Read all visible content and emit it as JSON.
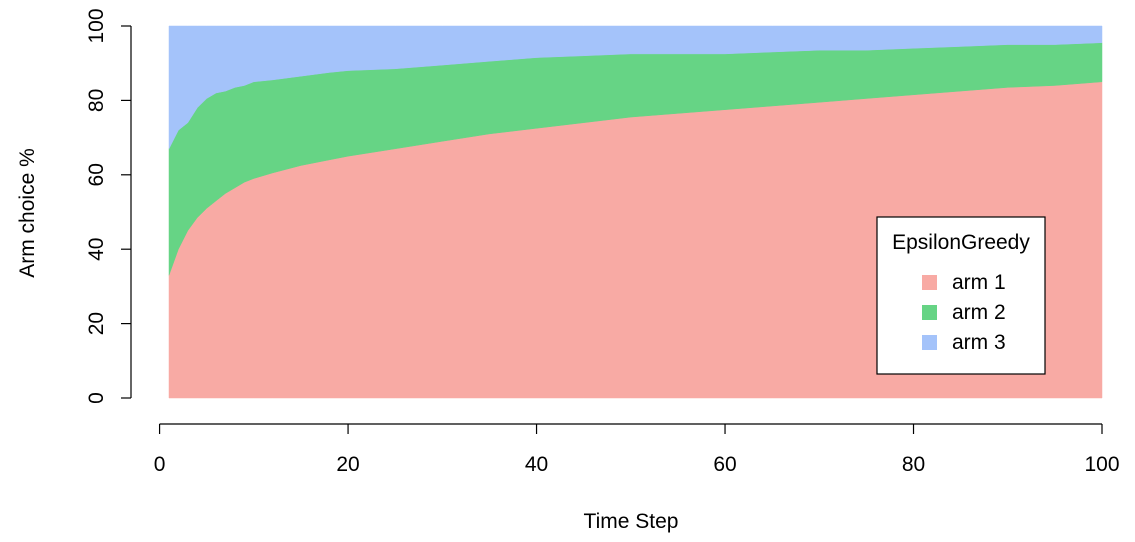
{
  "chart_data": {
    "type": "area",
    "stacked": true,
    "xlabel": "Time Step",
    "ylabel": "Arm choice %",
    "xlim": [
      1,
      100
    ],
    "ylim": [
      0,
      100
    ],
    "x_ticks": [
      0,
      20,
      40,
      60,
      80,
      100
    ],
    "y_ticks": [
      0,
      20,
      40,
      60,
      80,
      100
    ],
    "grid": false,
    "legend": {
      "title": "EpsilonGreedy",
      "placement": "bottom-right",
      "entries": [
        "arm 1",
        "arm 2",
        "arm 3"
      ]
    },
    "series": [
      {
        "name": "arm 1",
        "color": "#F8AAA4",
        "points": [
          [
            1,
            33
          ],
          [
            2,
            40
          ],
          [
            3,
            45
          ],
          [
            4,
            48.5
          ],
          [
            5,
            51
          ],
          [
            6,
            53
          ],
          [
            7,
            55
          ],
          [
            8,
            56.5
          ],
          [
            9,
            58
          ],
          [
            10,
            59
          ],
          [
            12,
            60.5
          ],
          [
            15,
            62.5
          ],
          [
            18,
            64
          ],
          [
            20,
            65
          ],
          [
            25,
            67
          ],
          [
            30,
            69
          ],
          [
            35,
            71
          ],
          [
            40,
            72.5
          ],
          [
            45,
            74
          ],
          [
            50,
            75.5
          ],
          [
            55,
            76.5
          ],
          [
            60,
            77.5
          ],
          [
            65,
            78.5
          ],
          [
            70,
            79.5
          ],
          [
            75,
            80.5
          ],
          [
            80,
            81.5
          ],
          [
            85,
            82.5
          ],
          [
            90,
            83.5
          ],
          [
            95,
            84
          ],
          [
            100,
            85
          ]
        ]
      },
      {
        "name": "arm 2",
        "color": "#66D485",
        "points": [
          [
            1,
            34
          ],
          [
            2,
            32
          ],
          [
            3,
            29
          ],
          [
            4,
            29.5
          ],
          [
            5,
            29.5
          ],
          [
            6,
            29
          ],
          [
            7,
            27.5
          ],
          [
            8,
            27
          ],
          [
            9,
            26
          ],
          [
            10,
            26
          ],
          [
            12,
            25
          ],
          [
            15,
            24
          ],
          [
            18,
            23.5
          ],
          [
            20,
            23
          ],
          [
            25,
            21.5
          ],
          [
            30,
            20.5
          ],
          [
            35,
            19.5
          ],
          [
            40,
            19
          ],
          [
            45,
            18
          ],
          [
            50,
            17
          ],
          [
            55,
            16
          ],
          [
            60,
            15
          ],
          [
            65,
            14.5
          ],
          [
            70,
            14
          ],
          [
            75,
            13
          ],
          [
            80,
            12.5
          ],
          [
            85,
            12
          ],
          [
            90,
            11.5
          ],
          [
            95,
            11
          ],
          [
            100,
            10.5
          ]
        ]
      },
      {
        "name": "arm 3",
        "color": "#A4C3FA",
        "points": [
          [
            1,
            33
          ],
          [
            2,
            28
          ],
          [
            3,
            26
          ],
          [
            4,
            22
          ],
          [
            5,
            19.5
          ],
          [
            6,
            18
          ],
          [
            7,
            17.5
          ],
          [
            8,
            16.5
          ],
          [
            9,
            16
          ],
          [
            10,
            15
          ],
          [
            12,
            14.5
          ],
          [
            15,
            13.5
          ],
          [
            18,
            12.5
          ],
          [
            20,
            12
          ],
          [
            25,
            11.5
          ],
          [
            30,
            10.5
          ],
          [
            35,
            9.5
          ],
          [
            40,
            8.5
          ],
          [
            45,
            8
          ],
          [
            50,
            7.5
          ],
          [
            55,
            7.5
          ],
          [
            60,
            7.5
          ],
          [
            65,
            7
          ],
          [
            70,
            6.5
          ],
          [
            75,
            6.5
          ],
          [
            80,
            6
          ],
          [
            85,
            5.5
          ],
          [
            90,
            5
          ],
          [
            95,
            5
          ],
          [
            100,
            4.5
          ]
        ]
      }
    ]
  }
}
